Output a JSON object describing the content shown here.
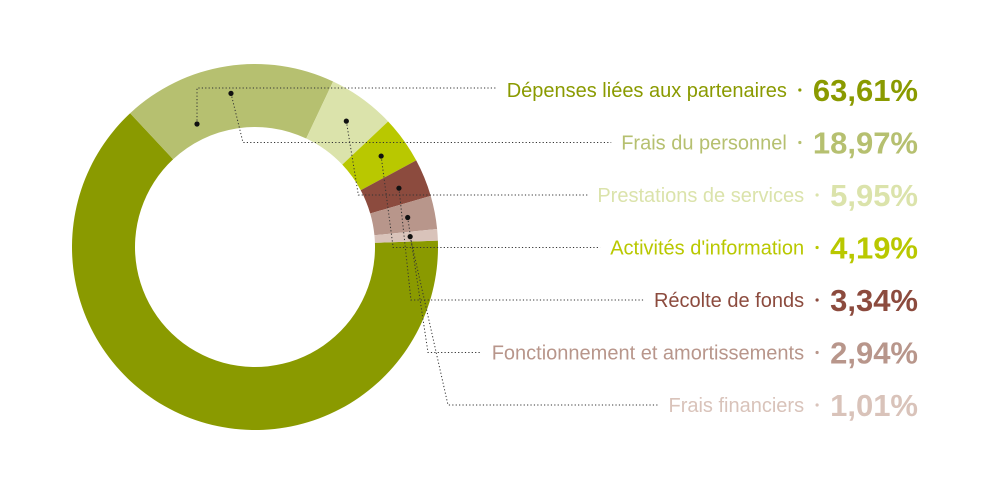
{
  "chart_data": {
    "type": "pie",
    "variant": "donut",
    "legend_placement": "right",
    "title": "",
    "categories": [
      "Dépenses liées aux partenaires",
      "Frais du personnel",
      "Prestations de services",
      "Activités d'information",
      "Récolte de fonds",
      "Fonctionnement et amortissements",
      "Frais financiers"
    ],
    "values": [
      63.61,
      18.97,
      5.95,
      4.19,
      3.34,
      2.94,
      1.01
    ],
    "value_labels": [
      "63,61%",
      "18,97%",
      "5,95%",
      "4,19%",
      "3,34%",
      "2,94%",
      "1,01%"
    ],
    "colors": [
      "#8a9a00",
      "#b6c070",
      "#dbe3ab",
      "#b9c800",
      "#8c4b3e",
      "#b8968b",
      "#d9c3ba"
    ]
  }
}
